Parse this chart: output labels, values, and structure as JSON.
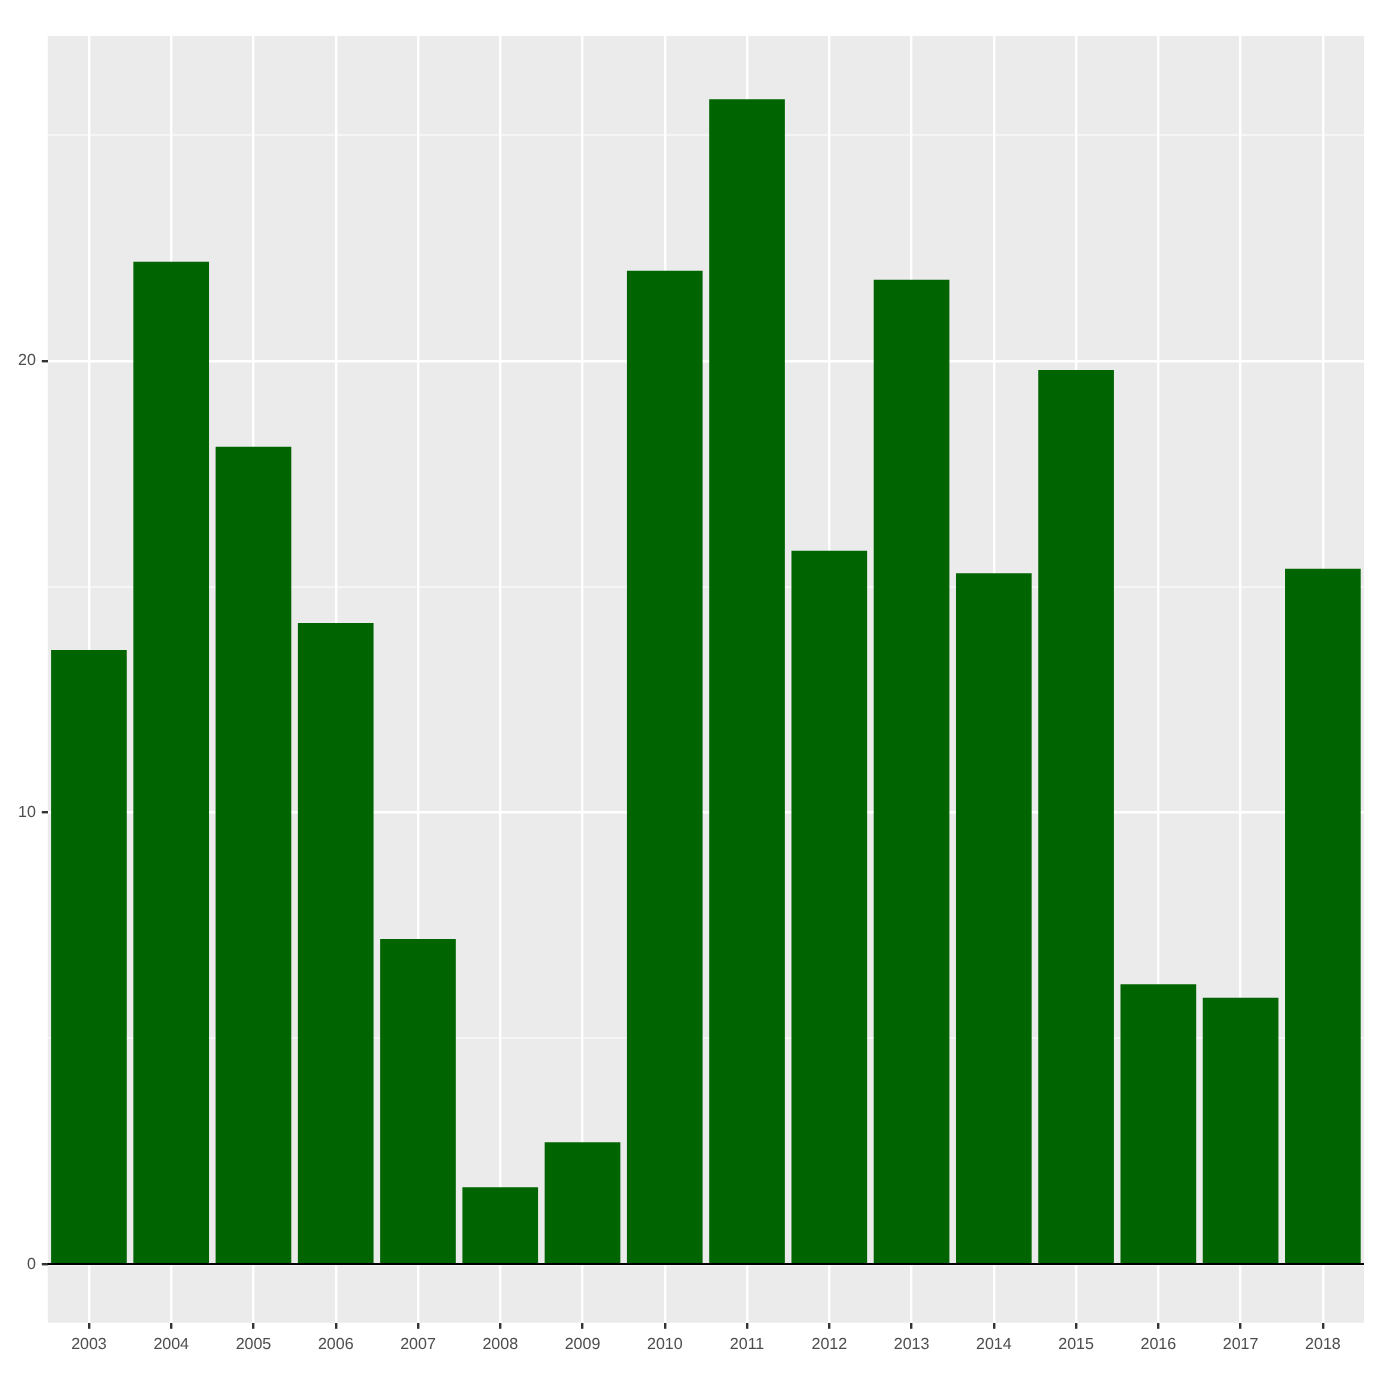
{
  "chart_data": {
    "type": "bar",
    "categories": [
      "2003",
      "2004",
      "2005",
      "2006",
      "2007",
      "2008",
      "2009",
      "2010",
      "2011",
      "2012",
      "2013",
      "2014",
      "2015",
      "2016",
      "2017",
      "2018"
    ],
    "values": [
      13.6,
      22.2,
      18.1,
      14.2,
      7.2,
      1.7,
      2.7,
      22.0,
      25.8,
      15.8,
      21.8,
      15.3,
      19.8,
      6.2,
      5.9,
      15.4
    ],
    "color": "#006400",
    "ylim": [
      -1.3,
      27.2
    ],
    "yticks": [
      0,
      {
        "value": 5,
        "label": null
      },
      10,
      {
        "value": 15,
        "label": null
      },
      20,
      {
        "value": 25,
        "label": null
      }
    ],
    "grid": true,
    "legend": false,
    "ref_lines": [
      {
        "axis": "y",
        "value": 0,
        "color": "#000000"
      }
    ]
  }
}
